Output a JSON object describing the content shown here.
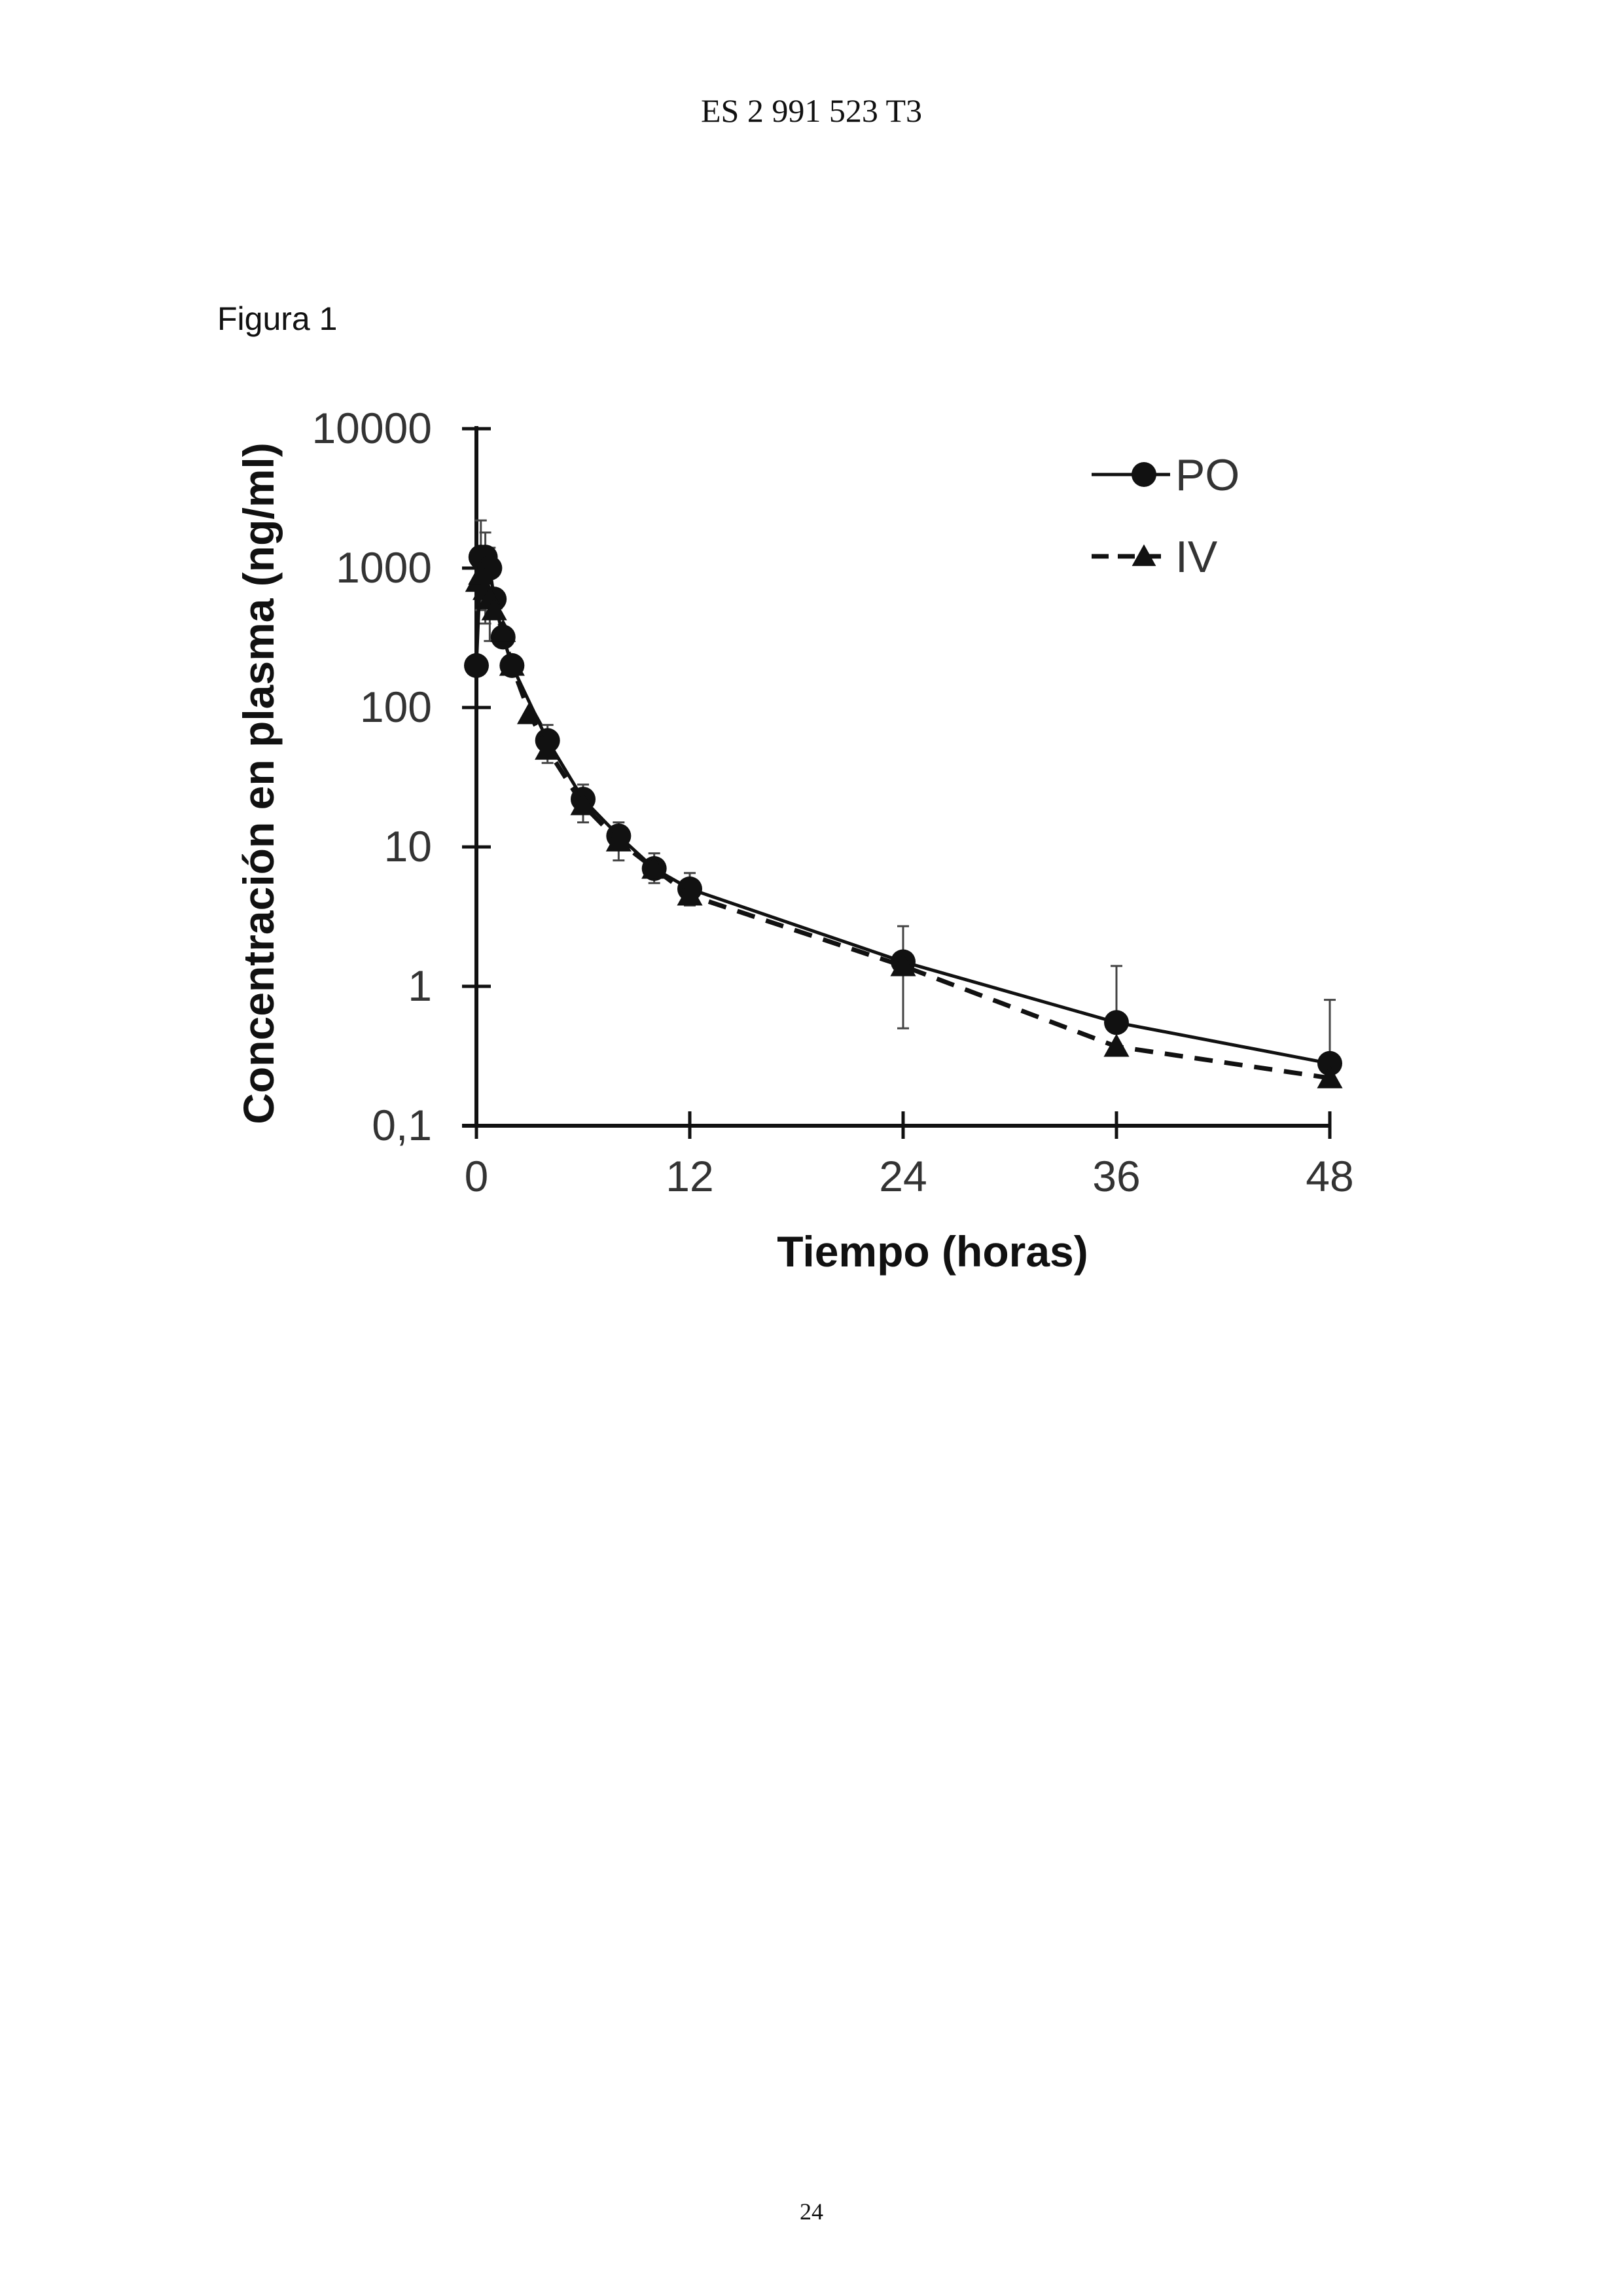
{
  "document": {
    "header": "ES 2 991 523 T3",
    "figure_label": "Figura 1",
    "page_number": "24"
  },
  "chart_data": {
    "type": "line",
    "title": "",
    "xlabel": "Tiempo (horas)",
    "ylabel": "Concentración en plasma (ng/ml)",
    "yscale": "log",
    "xlim": [
      0,
      48
    ],
    "ylim": [
      0.1,
      10000
    ],
    "x_ticks": [
      "0",
      "12",
      "24",
      "36",
      "48"
    ],
    "y_ticks": [
      "0,1",
      "1",
      "10",
      "100",
      "1000",
      "10000"
    ],
    "legend_position": "top-right",
    "grid": false,
    "series": [
      {
        "name": "PO",
        "marker": "circle",
        "line_style": "solid",
        "x": [
          0,
          0.25,
          0.5,
          0.75,
          1,
          1.5,
          2,
          4,
          6,
          8,
          10,
          12,
          24,
          36,
          48
        ],
        "y": [
          200,
          1200,
          1200,
          1000,
          600,
          320,
          200,
          58,
          22,
          12,
          7,
          5,
          1.5,
          0.55,
          0.28
        ],
        "error_upper": [
          null,
          2200,
          1800,
          1400,
          null,
          null,
          null,
          75,
          28,
          15,
          9,
          6.5,
          2.7,
          1.4,
          0.8
        ]
      },
      {
        "name": "IV",
        "marker": "triangle",
        "line_style": "dashed",
        "x": [
          0.083,
          0.25,
          0.5,
          0.75,
          1,
          1.5,
          2,
          3,
          4,
          6,
          8,
          10,
          12,
          24,
          36,
          48
        ],
        "y": [
          800,
          900,
          700,
          600,
          500,
          350,
          200,
          90,
          50,
          20,
          11,
          7,
          4.5,
          1.4,
          0.37,
          0.22
        ],
        "error_lower": [
          null,
          500,
          400,
          300,
          null,
          null,
          null,
          null,
          40,
          15,
          8,
          5.5,
          3.8,
          0.5,
          null,
          null
        ]
      }
    ]
  }
}
